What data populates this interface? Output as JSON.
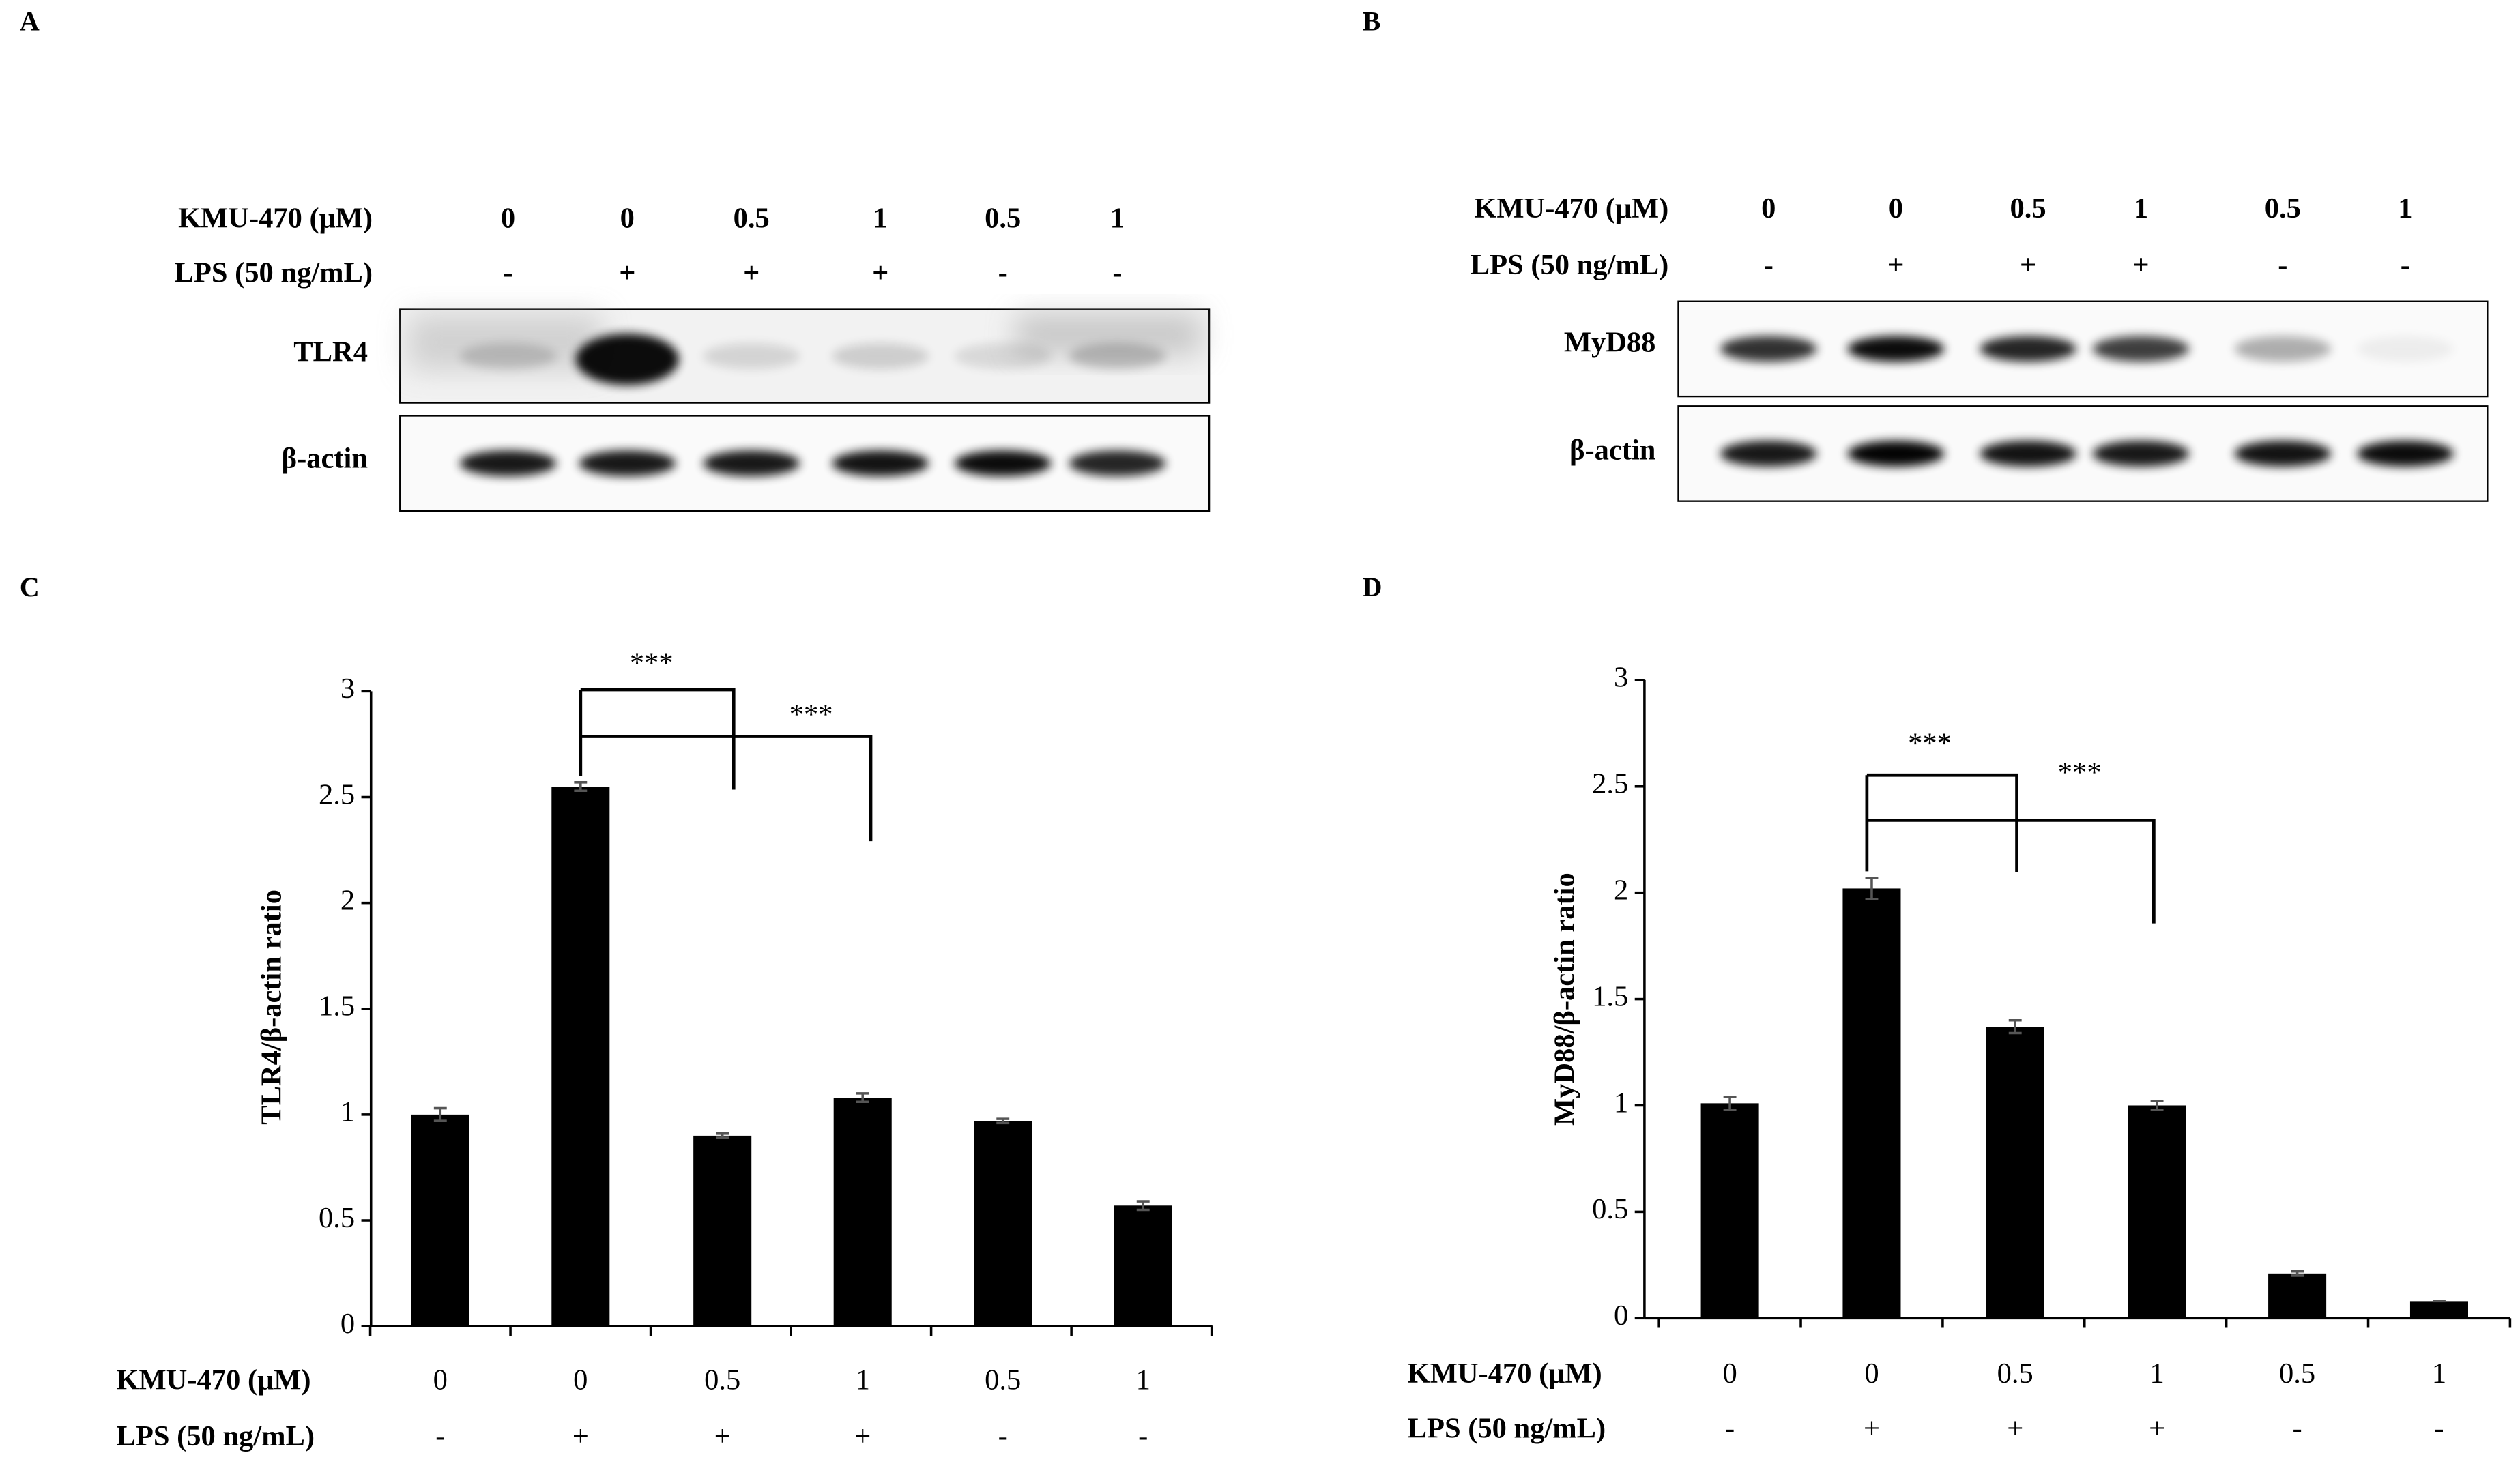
{
  "panel_labels": [
    "A",
    "B",
    "C",
    "D"
  ],
  "blots": [
    {
      "rows": [
        {
          "label": "KMU-470 (μM)",
          "values": [
            "0",
            "0",
            "0.5",
            "1",
            "0.5",
            "1"
          ]
        },
        {
          "label": "LPS (50 ng/mL)",
          "values": [
            "-",
            "+",
            "+",
            "+",
            "-",
            "-"
          ]
        }
      ],
      "bands": [
        "TLR4",
        "β-actin"
      ]
    },
    {
      "rows": [
        {
          "label": "KMU-470 (μM)",
          "values": [
            "0",
            "0",
            "0.5",
            "1",
            "0.5",
            "1"
          ]
        },
        {
          "label": "LPS (50 ng/mL)",
          "values": [
            "-",
            "+",
            "+",
            "+",
            "-",
            "-"
          ]
        }
      ],
      "bands": [
        "MyD88",
        "β-actin"
      ]
    }
  ],
  "chart_data": [
    {
      "type": "bar",
      "ylabel": "TLR4/β-actin ratio",
      "color": "#000000",
      "category_row_label": "KMU-470 (μM)",
      "categories": [
        "0",
        "0",
        "0.5",
        "1",
        "0.5",
        "1"
      ],
      "secondary_row_label": "LPS (50 ng/mL)",
      "secondary_categories": [
        "-",
        "+",
        "+",
        "+",
        "-",
        "-"
      ],
      "values": [
        1.0,
        2.55,
        0.9,
        1.08,
        0.97,
        0.57
      ],
      "errors": [
        0.03,
        0.02,
        0.01,
        0.02,
        0.01,
        0.02
      ],
      "ylim": [
        0,
        3
      ],
      "yticks": [
        0,
        0.5,
        1,
        1.5,
        2,
        2.5,
        3
      ],
      "annotations": [
        "***",
        "***"
      ]
    },
    {
      "type": "bar",
      "ylabel": "MyD88/β-actin ratio",
      "color": "#000000",
      "category_row_label": "KMU-470 (μM)",
      "categories": [
        "0",
        "0",
        "0.5",
        "1",
        "0.5",
        "1"
      ],
      "secondary_row_label": "LPS (50 ng/mL)",
      "secondary_categories": [
        "-",
        "+",
        "+",
        "+",
        "-",
        "-"
      ],
      "values": [
        1.01,
        2.02,
        1.37,
        1.0,
        0.21,
        0.08
      ],
      "errors": [
        0.03,
        0.05,
        0.03,
        0.02,
        0.01,
        0.0
      ],
      "ylim": [
        0,
        3
      ],
      "yticks": [
        0,
        0.5,
        1,
        1.5,
        2,
        2.5,
        3
      ],
      "annotations": [
        "***",
        "***"
      ]
    }
  ]
}
